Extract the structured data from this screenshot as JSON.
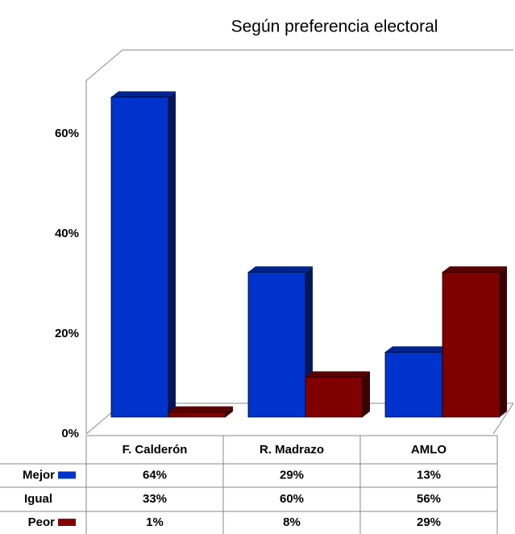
{
  "chart_data": {
    "type": "bar",
    "title": "Según preferencia electoral",
    "categories": [
      "F. Calderón",
      "R. Madrazo",
      "AMLO"
    ],
    "series": [
      {
        "name": "Mejor",
        "color": "#0033cc",
        "values": [
          64,
          29,
          13
        ],
        "value_labels": [
          "64%",
          "29%",
          "13%"
        ]
      },
      {
        "name": "Igual",
        "values": [
          33,
          60,
          56
        ],
        "value_labels": [
          "33%",
          "60%",
          "56%"
        ]
      },
      {
        "name": "Peor",
        "color": "#800000",
        "values": [
          1,
          8,
          29
        ],
        "value_labels": [
          "1%",
          "8%",
          "29%"
        ]
      }
    ],
    "ylim": [
      0,
      70
    ],
    "yticks": [
      {
        "value": 0,
        "label": "0%"
      },
      {
        "value": 20,
        "label": "20%"
      },
      {
        "value": 40,
        "label": "40%"
      },
      {
        "value": 60,
        "label": "60%"
      }
    ],
    "grid": false,
    "data_table": true
  }
}
